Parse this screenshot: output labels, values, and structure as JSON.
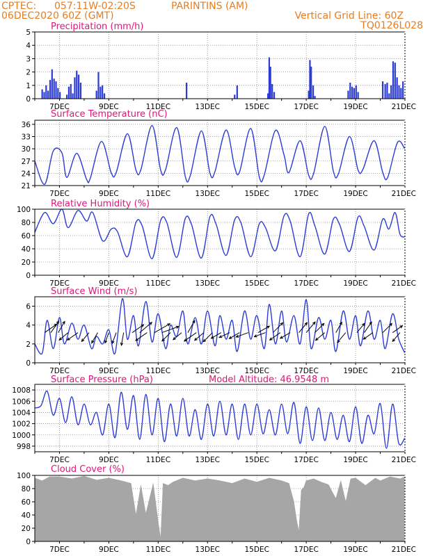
{
  "header": {
    "source": "CPTEC:",
    "coords": "057:11W-02:20S",
    "station": "PARINTINS (AM)",
    "run": "06DEC2020 60Z (GMT)",
    "grid_note": "Vertical Grid Line: 60Z",
    "model_code": "TQ0126L028"
  },
  "colors": {
    "header": "#e87c1e",
    "title": "#e0157a",
    "line": "#2b3bd6",
    "cloud": "#a6a6a6"
  },
  "x_axis": {
    "start_day": 6,
    "end_day": 21,
    "tick_labels": [
      "7DEC",
      "9DEC",
      "11DEC",
      "13DEC",
      "15DEC",
      "17DEC",
      "19DEC",
      "21DEC"
    ],
    "tick_days": [
      7,
      9,
      11,
      13,
      15,
      17,
      19,
      21
    ]
  },
  "chart_data": [
    {
      "id": "precip",
      "type": "bar",
      "title": "Precipitation (mm/h)",
      "ylim": [
        0,
        5
      ],
      "yticks": [
        0,
        1,
        2,
        3,
        4,
        5
      ],
      "x_unit": "day of December 2020",
      "x": [
        6.3,
        6.38,
        6.46,
        6.54,
        6.62,
        6.7,
        6.78,
        6.86,
        6.94,
        7.02,
        7.3,
        7.38,
        7.46,
        7.54,
        7.62,
        7.7,
        7.78,
        7.86,
        8.5,
        8.58,
        8.66,
        8.74,
        8.82,
        12.15,
        14.1,
        14.2,
        15.45,
        15.5,
        15.55,
        15.62,
        15.7,
        17.1,
        17.15,
        17.2,
        17.28,
        17.35,
        18.7,
        18.78,
        18.86,
        18.94,
        19.02,
        19.1,
        20.1,
        20.2,
        20.28,
        20.36,
        20.44,
        20.52,
        20.6,
        20.68,
        20.76,
        20.84,
        20.92
      ],
      "values": [
        0.7,
        0.5,
        1.0,
        0.6,
        1.4,
        2.2,
        1.5,
        1.3,
        0.8,
        0.5,
        0.3,
        0.9,
        1.1,
        0.4,
        1.6,
        2.1,
        1.8,
        1.2,
        0.6,
        2.0,
        0.9,
        1.0,
        0.4,
        1.2,
        0.3,
        1.0,
        0.4,
        3.1,
        2.4,
        1.1,
        0.5,
        0.6,
        2.9,
        2.4,
        1.0,
        0.2,
        0.6,
        1.2,
        0.9,
        0.8,
        1.0,
        0.5,
        1.3,
        1.1,
        1.2,
        0.4,
        1.0,
        2.8,
        2.7,
        1.6,
        1.0,
        0.8,
        1.3
      ]
    },
    {
      "id": "temp",
      "type": "line",
      "title": "Surface Temperature (nC)",
      "ylim": [
        21,
        37
      ],
      "yticks": [
        21,
        24,
        27,
        30,
        33,
        36
      ],
      "x_unit": "day of December 2020",
      "x": [
        6.0,
        6.4,
        6.75,
        7.1,
        7.3,
        7.7,
        8.1,
        8.25,
        8.7,
        9.1,
        9.3,
        9.75,
        10.1,
        10.3,
        10.75,
        11.1,
        11.3,
        11.75,
        12.1,
        12.3,
        12.75,
        13.1,
        13.3,
        13.75,
        14.1,
        14.3,
        14.75,
        15.1,
        15.3,
        15.75,
        16.1,
        16.3,
        16.75,
        17.1,
        17.3,
        17.75,
        18.1,
        18.3,
        18.75,
        19.1,
        19.3,
        19.75,
        20.1,
        20.3,
        20.7,
        21.0
      ],
      "values": [
        27.0,
        21.3,
        29.5,
        29.0,
        23.0,
        28.9,
        22.5,
        22.8,
        31.8,
        24.1,
        24.2,
        33.7,
        24.8,
        24.9,
        35.7,
        24.8,
        24.9,
        35.2,
        23.2,
        23.4,
        34.4,
        24.0,
        24.4,
        34.6,
        25.5,
        24.4,
        35.0,
        23.1,
        23.6,
        34.5,
        28.5,
        24.2,
        32.0,
        23.5,
        24.0,
        35.5,
        24.5,
        23.8,
        33.0,
        24.8,
        25.0,
        32.0,
        24.2,
        23.0,
        31.6,
        29.9
      ]
    },
    {
      "id": "rh",
      "type": "line",
      "title": "Relative Humidity (%)",
      "ylim": [
        0,
        100
      ],
      "yticks": [
        0,
        20,
        40,
        60,
        80,
        100
      ],
      "x_unit": "day of December 2020",
      "x": [
        6.0,
        6.4,
        6.75,
        7.1,
        7.35,
        7.75,
        8.1,
        8.35,
        8.75,
        9.1,
        9.35,
        9.75,
        10.1,
        10.35,
        10.75,
        11.1,
        11.35,
        11.75,
        12.1,
        12.35,
        12.75,
        13.1,
        13.35,
        13.75,
        14.1,
        14.35,
        14.75,
        15.1,
        15.35,
        15.75,
        16.1,
        16.35,
        16.75,
        17.1,
        17.35,
        17.75,
        18.1,
        18.35,
        18.75,
        19.1,
        19.35,
        19.75,
        20.1,
        20.35,
        20.6,
        20.8,
        21.0
      ],
      "values": [
        65,
        95,
        78,
        100,
        72,
        98,
        82,
        95,
        52,
        70,
        66,
        28,
        80,
        75,
        25,
        83,
        80,
        27,
        86,
        77,
        26,
        89,
        77,
        30,
        84,
        80,
        28,
        78,
        72,
        37,
        90,
        82,
        28,
        93,
        75,
        32,
        85,
        77,
        36,
        88,
        74,
        38,
        85,
        70,
        95,
        62,
        58
      ]
    },
    {
      "id": "wind",
      "type": "line",
      "title": "Surface Wind (m/s)",
      "ylim": [
        0,
        7
      ],
      "yticks": [
        0,
        2,
        4,
        6
      ],
      "x_unit": "day of December 2020",
      "x": [
        6.0,
        6.3,
        6.5,
        6.75,
        7.0,
        7.2,
        7.5,
        7.75,
        8.0,
        8.3,
        8.5,
        8.75,
        9.0,
        9.25,
        9.55,
        9.75,
        10.0,
        10.2,
        10.5,
        10.75,
        11.0,
        11.3,
        11.5,
        11.75,
        12.0,
        12.2,
        12.5,
        12.75,
        13.0,
        13.3,
        13.5,
        13.75,
        14.0,
        14.2,
        14.5,
        14.75,
        15.0,
        15.3,
        15.5,
        15.75,
        16.0,
        16.2,
        16.5,
        16.75,
        17.0,
        17.2,
        17.5,
        17.75,
        18.0,
        18.2,
        18.5,
        18.75,
        19.0,
        19.2,
        19.5,
        19.75,
        20.0,
        20.2,
        20.5,
        20.75,
        21.0
      ],
      "values": [
        2.0,
        1.0,
        4.5,
        1.5,
        4.8,
        2.0,
        4.2,
        2.5,
        4.0,
        1.5,
        2.8,
        2.0,
        3.5,
        1.0,
        6.8,
        2.5,
        5.0,
        1.8,
        6.5,
        2.2,
        5.2,
        1.5,
        4.0,
        2.8,
        5.5,
        2.0,
        4.8,
        2.0,
        5.5,
        1.8,
        5.0,
        2.5,
        4.5,
        1.2,
        5.5,
        2.5,
        5.0,
        1.5,
        6.2,
        2.0,
        5.5,
        2.2,
        5.0,
        2.0,
        6.7,
        1.5,
        4.8,
        2.5,
        4.5,
        1.2,
        5.5,
        2.5,
        5.0,
        1.8,
        5.5,
        2.5,
        4.5,
        1.5,
        5.2,
        2.5,
        1.0
      ],
      "vectors": [
        {
          "day": 6.4,
          "speed": 2.2,
          "dir_deg": 35
        },
        {
          "day": 6.65,
          "speed": 2.0,
          "dir_deg": 55
        },
        {
          "day": 6.95,
          "speed": 1.8,
          "dir_deg": 60
        },
        {
          "day": 7.35,
          "speed": 1.5,
          "dir_deg": 220
        },
        {
          "day": 7.75,
          "speed": 1.8,
          "dir_deg": 215
        },
        {
          "day": 8.2,
          "speed": 1.5,
          "dir_deg": 230
        },
        {
          "day": 8.55,
          "speed": 1.6,
          "dir_deg": 240
        },
        {
          "day": 9.0,
          "speed": 1.4,
          "dir_deg": 250
        },
        {
          "day": 9.3,
          "speed": 1.5,
          "dir_deg": 250
        },
        {
          "day": 9.6,
          "speed": 1.8,
          "dir_deg": 260
        },
        {
          "day": 9.95,
          "speed": 2.0,
          "dir_deg": 35
        },
        {
          "day": 10.25,
          "speed": 2.4,
          "dir_deg": 40
        },
        {
          "day": 10.55,
          "speed": 2.0,
          "dir_deg": 215
        },
        {
          "day": 10.85,
          "speed": 2.8,
          "dir_deg": 30
        },
        {
          "day": 11.15,
          "speed": 2.8,
          "dir_deg": 20
        },
        {
          "day": 11.5,
          "speed": 1.6,
          "dir_deg": 225
        },
        {
          "day": 11.95,
          "speed": 1.4,
          "dir_deg": 220
        },
        {
          "day": 12.2,
          "speed": 2.0,
          "dir_deg": 60
        },
        {
          "day": 12.55,
          "speed": 2.2,
          "dir_deg": 215
        },
        {
          "day": 12.85,
          "speed": 1.6,
          "dir_deg": 220
        },
        {
          "day": 13.2,
          "speed": 1.8,
          "dir_deg": 225
        },
        {
          "day": 13.55,
          "speed": 1.5,
          "dir_deg": 210
        },
        {
          "day": 13.9,
          "speed": 1.5,
          "dir_deg": 205
        },
        {
          "day": 14.3,
          "speed": 1.6,
          "dir_deg": 210
        },
        {
          "day": 14.65,
          "speed": 1.8,
          "dir_deg": 200
        },
        {
          "day": 15.05,
          "speed": 1.8,
          "dir_deg": 30
        },
        {
          "day": 15.35,
          "speed": 1.6,
          "dir_deg": 200
        },
        {
          "day": 15.65,
          "speed": 2.0,
          "dir_deg": 45
        },
        {
          "day": 15.95,
          "speed": 1.8,
          "dir_deg": 215
        },
        {
          "day": 16.35,
          "speed": 1.5,
          "dir_deg": 210
        },
        {
          "day": 16.7,
          "speed": 1.8,
          "dir_deg": 50
        },
        {
          "day": 17.0,
          "speed": 2.0,
          "dir_deg": 50
        },
        {
          "day": 17.35,
          "speed": 1.8,
          "dir_deg": 45
        },
        {
          "day": 17.75,
          "speed": 1.6,
          "dir_deg": 220
        },
        {
          "day": 18.2,
          "speed": 1.6,
          "dir_deg": 60
        },
        {
          "day": 18.6,
          "speed": 1.8,
          "dir_deg": 230
        },
        {
          "day": 19.05,
          "speed": 1.6,
          "dir_deg": 50
        },
        {
          "day": 19.35,
          "speed": 1.8,
          "dir_deg": 55
        },
        {
          "day": 19.7,
          "speed": 1.5,
          "dir_deg": 215
        },
        {
          "day": 20.1,
          "speed": 1.8,
          "dir_deg": 45
        },
        {
          "day": 20.5,
          "speed": 1.6,
          "dir_deg": 35
        },
        {
          "day": 20.8,
          "speed": 1.5,
          "dir_deg": 230
        }
      ]
    },
    {
      "id": "pres",
      "type": "line",
      "title": "Surface Pressure (hPa)",
      "annotation": "Model Altitude: 46.9548 m",
      "ylim": [
        997,
        1009
      ],
      "yticks": [
        998,
        1000,
        1002,
        1004,
        1006,
        1008
      ],
      "x_unit": "day of December 2020",
      "x": [
        6.0,
        6.25,
        6.5,
        6.75,
        7.0,
        7.25,
        7.5,
        7.75,
        8.0,
        8.25,
        8.5,
        8.75,
        9.0,
        9.25,
        9.5,
        9.75,
        10.0,
        10.25,
        10.5,
        10.75,
        11.0,
        11.25,
        11.5,
        11.75,
        12.0,
        12.25,
        12.5,
        12.75,
        13.0,
        13.25,
        13.5,
        13.75,
        14.0,
        14.25,
        14.5,
        14.75,
        15.0,
        15.25,
        15.5,
        15.75,
        16.0,
        16.25,
        16.5,
        16.75,
        17.0,
        17.25,
        17.5,
        17.75,
        18.0,
        18.25,
        18.5,
        18.75,
        19.0,
        19.25,
        19.5,
        19.75,
        20.0,
        20.25,
        20.5,
        20.75,
        21.0
      ],
      "values": [
        1004.8,
        1005.2,
        1007.8,
        1003.5,
        1006.5,
        1002.2,
        1006.8,
        1001.8,
        1005.5,
        1001.8,
        1004.0,
        1000.0,
        1005.5,
        999.5,
        1007.6,
        1001.0,
        1007.0,
        999.2,
        1007.2,
        1000.0,
        1006.5,
        998.8,
        1005.5,
        999.8,
        1006.5,
        999.8,
        1004.5,
        999.2,
        1005.5,
        999.8,
        1006.0,
        1000.0,
        1005.5,
        999.2,
        1005.5,
        1000.0,
        1005.5,
        1000.2,
        1004.5,
        1000.0,
        1005.5,
        1000.2,
        1005.8,
        998.5,
        1005.0,
        999.0,
        1004.8,
        999.0,
        1004.0,
        999.2,
        1003.5,
        998.8,
        1005.0,
        998.5,
        1003.5,
        1000.2,
        1005.6,
        997.6,
        1005.5,
        998.5,
        999.5
      ]
    },
    {
      "id": "cloud",
      "type": "area",
      "title": "Cloud Cover (%)",
      "ylim": [
        0,
        100
      ],
      "yticks": [
        0,
        20,
        40,
        60,
        80,
        100
      ],
      "x_unit": "day of December 2020",
      "x": [
        6.0,
        6.3,
        6.6,
        7.0,
        7.5,
        8.0,
        8.5,
        9.0,
        9.5,
        9.9,
        10.1,
        10.3,
        10.5,
        10.8,
        11.0,
        11.1,
        11.2,
        11.4,
        11.6,
        11.8,
        12.0,
        12.5,
        13.0,
        13.5,
        14.0,
        14.5,
        15.0,
        15.5,
        16.0,
        16.3,
        16.5,
        16.6,
        16.7,
        16.8,
        16.9,
        17.0,
        17.3,
        17.6,
        17.9,
        18.2,
        18.4,
        18.6,
        18.8,
        19.0,
        19.4,
        19.8,
        20.0,
        20.4,
        20.8,
        21.0
      ],
      "values": [
        96,
        92,
        98,
        98,
        95,
        99,
        93,
        96,
        92,
        88,
        40,
        85,
        42,
        88,
        30,
        5,
        88,
        85,
        90,
        93,
        96,
        92,
        95,
        92,
        88,
        95,
        90,
        96,
        92,
        88,
        60,
        35,
        15,
        78,
        82,
        92,
        95,
        90,
        86,
        65,
        92,
        60,
        95,
        96,
        85,
        96,
        92,
        98,
        95,
        98
      ]
    }
  ]
}
